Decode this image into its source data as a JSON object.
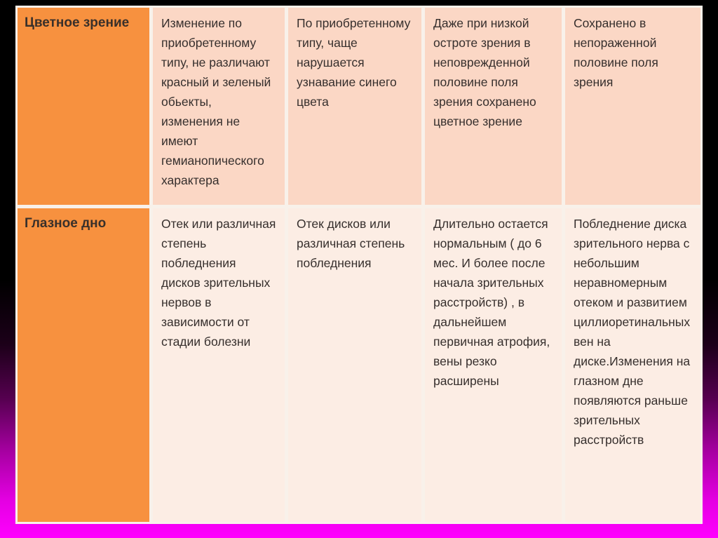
{
  "slide": {
    "kind": "presentation-table-slide",
    "colors": {
      "background_top": "#000000",
      "background_bottom": "#ff00ff",
      "header_column_orange": "#f7913f",
      "row_band_1": "#fbd7c5",
      "row_band_2": "#fcede4",
      "table_border": "#f8f1ea",
      "text": "#362f2d"
    }
  },
  "table": {
    "rows": [
      {
        "header": "Цветное зрение",
        "cells": [
          "Изменение по приобретенному типу, не различают красный и зеленый обьекты, изменения не имеют гемианопического характера",
          "По приобретенному типу, чаще нарушается узнавание синего цвета",
          "Даже при низкой остроте зрения в неповрежденной половине поля зрения сохранено цветное зрение",
          "Сохранено в непораженной половине поля зрения"
        ]
      },
      {
        "header": "Глазное дно",
        "cells": [
          "Отек или различная степень побледнения дисков зрительных нервов в зависимости от стадии болезни",
          "Отек дисков или различная степень побледнения",
          "Длительно остается нормальным ( до 6 мес. И более после начала зрительных расстройств) , в дальнейшем первичная атрофия, вены резко расширены",
          "Побледнение диска зрительного нерва с небольшим неравномерным отеком и развитием циллиоретинальных вен на диске.Изменения на глазном дне появляются раньше зрительных расстройств"
        ]
      }
    ]
  }
}
